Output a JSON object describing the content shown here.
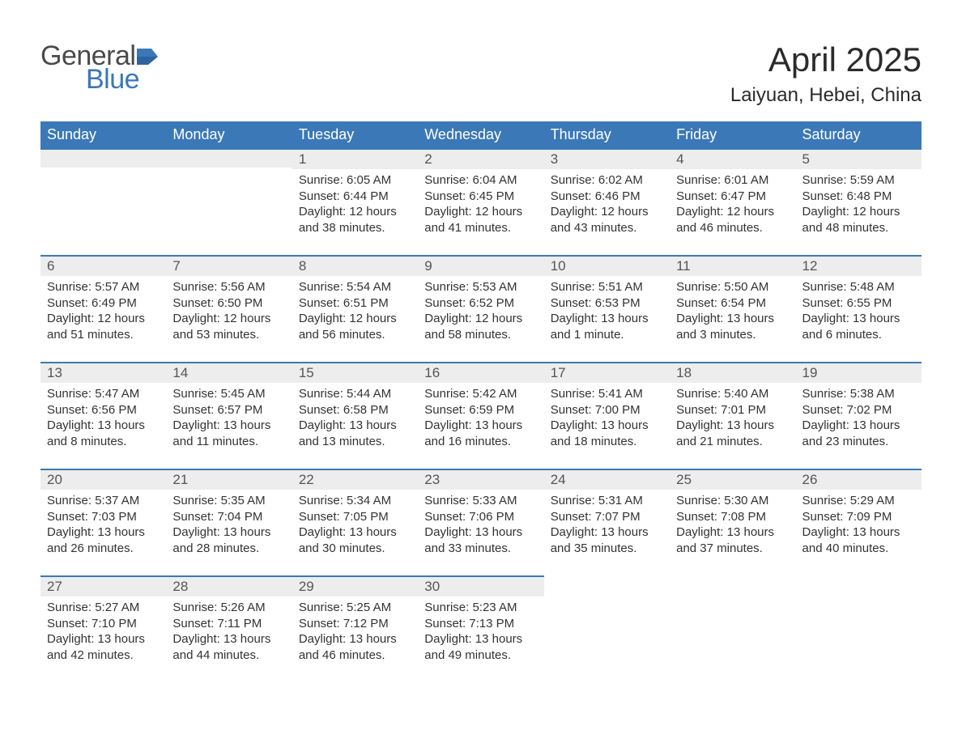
{
  "logo": {
    "text1": "General",
    "text2": "Blue",
    "flag_color": "#3b78b8",
    "text1_color": "#4a4a4a"
  },
  "title": "April 2025",
  "location": "Laiyuan, Hebei, China",
  "header_bg": "#3b78b8",
  "header_fg": "#ffffff",
  "daynum_bg": "#ededed",
  "daynum_border": "#3b78b8",
  "body_bg": "#ffffff",
  "text_color": "#333333",
  "font_family": "Arial, Helvetica, sans-serif",
  "title_fontsize": 42,
  "location_fontsize": 24,
  "dayheader_fontsize": 18,
  "daynum_fontsize": 17,
  "body_fontsize": 15,
  "weekdays": [
    "Sunday",
    "Monday",
    "Tuesday",
    "Wednesday",
    "Thursday",
    "Friday",
    "Saturday"
  ],
  "weeks": [
    [
      null,
      null,
      {
        "n": "1",
        "sunrise": "Sunrise: 6:05 AM",
        "sunset": "Sunset: 6:44 PM",
        "dl1": "Daylight: 12 hours",
        "dl2": "and 38 minutes."
      },
      {
        "n": "2",
        "sunrise": "Sunrise: 6:04 AM",
        "sunset": "Sunset: 6:45 PM",
        "dl1": "Daylight: 12 hours",
        "dl2": "and 41 minutes."
      },
      {
        "n": "3",
        "sunrise": "Sunrise: 6:02 AM",
        "sunset": "Sunset: 6:46 PM",
        "dl1": "Daylight: 12 hours",
        "dl2": "and 43 minutes."
      },
      {
        "n": "4",
        "sunrise": "Sunrise: 6:01 AM",
        "sunset": "Sunset: 6:47 PM",
        "dl1": "Daylight: 12 hours",
        "dl2": "and 46 minutes."
      },
      {
        "n": "5",
        "sunrise": "Sunrise: 5:59 AM",
        "sunset": "Sunset: 6:48 PM",
        "dl1": "Daylight: 12 hours",
        "dl2": "and 48 minutes."
      }
    ],
    [
      {
        "n": "6",
        "sunrise": "Sunrise: 5:57 AM",
        "sunset": "Sunset: 6:49 PM",
        "dl1": "Daylight: 12 hours",
        "dl2": "and 51 minutes."
      },
      {
        "n": "7",
        "sunrise": "Sunrise: 5:56 AM",
        "sunset": "Sunset: 6:50 PM",
        "dl1": "Daylight: 12 hours",
        "dl2": "and 53 minutes."
      },
      {
        "n": "8",
        "sunrise": "Sunrise: 5:54 AM",
        "sunset": "Sunset: 6:51 PM",
        "dl1": "Daylight: 12 hours",
        "dl2": "and 56 minutes."
      },
      {
        "n": "9",
        "sunrise": "Sunrise: 5:53 AM",
        "sunset": "Sunset: 6:52 PM",
        "dl1": "Daylight: 12 hours",
        "dl2": "and 58 minutes."
      },
      {
        "n": "10",
        "sunrise": "Sunrise: 5:51 AM",
        "sunset": "Sunset: 6:53 PM",
        "dl1": "Daylight: 13 hours",
        "dl2": "and 1 minute."
      },
      {
        "n": "11",
        "sunrise": "Sunrise: 5:50 AM",
        "sunset": "Sunset: 6:54 PM",
        "dl1": "Daylight: 13 hours",
        "dl2": "and 3 minutes."
      },
      {
        "n": "12",
        "sunrise": "Sunrise: 5:48 AM",
        "sunset": "Sunset: 6:55 PM",
        "dl1": "Daylight: 13 hours",
        "dl2": "and 6 minutes."
      }
    ],
    [
      {
        "n": "13",
        "sunrise": "Sunrise: 5:47 AM",
        "sunset": "Sunset: 6:56 PM",
        "dl1": "Daylight: 13 hours",
        "dl2": "and 8 minutes."
      },
      {
        "n": "14",
        "sunrise": "Sunrise: 5:45 AM",
        "sunset": "Sunset: 6:57 PM",
        "dl1": "Daylight: 13 hours",
        "dl2": "and 11 minutes."
      },
      {
        "n": "15",
        "sunrise": "Sunrise: 5:44 AM",
        "sunset": "Sunset: 6:58 PM",
        "dl1": "Daylight: 13 hours",
        "dl2": "and 13 minutes."
      },
      {
        "n": "16",
        "sunrise": "Sunrise: 5:42 AM",
        "sunset": "Sunset: 6:59 PM",
        "dl1": "Daylight: 13 hours",
        "dl2": "and 16 minutes."
      },
      {
        "n": "17",
        "sunrise": "Sunrise: 5:41 AM",
        "sunset": "Sunset: 7:00 PM",
        "dl1": "Daylight: 13 hours",
        "dl2": "and 18 minutes."
      },
      {
        "n": "18",
        "sunrise": "Sunrise: 5:40 AM",
        "sunset": "Sunset: 7:01 PM",
        "dl1": "Daylight: 13 hours",
        "dl2": "and 21 minutes."
      },
      {
        "n": "19",
        "sunrise": "Sunrise: 5:38 AM",
        "sunset": "Sunset: 7:02 PM",
        "dl1": "Daylight: 13 hours",
        "dl2": "and 23 minutes."
      }
    ],
    [
      {
        "n": "20",
        "sunrise": "Sunrise: 5:37 AM",
        "sunset": "Sunset: 7:03 PM",
        "dl1": "Daylight: 13 hours",
        "dl2": "and 26 minutes."
      },
      {
        "n": "21",
        "sunrise": "Sunrise: 5:35 AM",
        "sunset": "Sunset: 7:04 PM",
        "dl1": "Daylight: 13 hours",
        "dl2": "and 28 minutes."
      },
      {
        "n": "22",
        "sunrise": "Sunrise: 5:34 AM",
        "sunset": "Sunset: 7:05 PM",
        "dl1": "Daylight: 13 hours",
        "dl2": "and 30 minutes."
      },
      {
        "n": "23",
        "sunrise": "Sunrise: 5:33 AM",
        "sunset": "Sunset: 7:06 PM",
        "dl1": "Daylight: 13 hours",
        "dl2": "and 33 minutes."
      },
      {
        "n": "24",
        "sunrise": "Sunrise: 5:31 AM",
        "sunset": "Sunset: 7:07 PM",
        "dl1": "Daylight: 13 hours",
        "dl2": "and 35 minutes."
      },
      {
        "n": "25",
        "sunrise": "Sunrise: 5:30 AM",
        "sunset": "Sunset: 7:08 PM",
        "dl1": "Daylight: 13 hours",
        "dl2": "and 37 minutes."
      },
      {
        "n": "26",
        "sunrise": "Sunrise: 5:29 AM",
        "sunset": "Sunset: 7:09 PM",
        "dl1": "Daylight: 13 hours",
        "dl2": "and 40 minutes."
      }
    ],
    [
      {
        "n": "27",
        "sunrise": "Sunrise: 5:27 AM",
        "sunset": "Sunset: 7:10 PM",
        "dl1": "Daylight: 13 hours",
        "dl2": "and 42 minutes."
      },
      {
        "n": "28",
        "sunrise": "Sunrise: 5:26 AM",
        "sunset": "Sunset: 7:11 PM",
        "dl1": "Daylight: 13 hours",
        "dl2": "and 44 minutes."
      },
      {
        "n": "29",
        "sunrise": "Sunrise: 5:25 AM",
        "sunset": "Sunset: 7:12 PM",
        "dl1": "Daylight: 13 hours",
        "dl2": "and 46 minutes."
      },
      {
        "n": "30",
        "sunrise": "Sunrise: 5:23 AM",
        "sunset": "Sunset: 7:13 PM",
        "dl1": "Daylight: 13 hours",
        "dl2": "and 49 minutes."
      },
      null,
      null,
      null
    ]
  ]
}
